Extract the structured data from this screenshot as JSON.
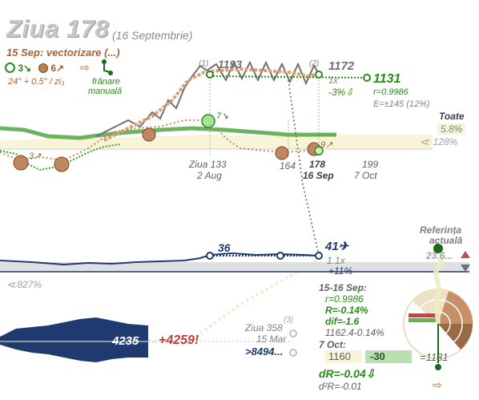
{
  "header": {
    "title": "Ziua 178",
    "date": "(16 Septembrie)",
    "subtitle": "15 Sep: vectorizare (...)",
    "metric_label": "24° + 0.5° / zi₃",
    "braking_label_1": "frânare",
    "braking_label_2": "manuală",
    "legend_green": "3↘",
    "legend_brown": "6↗"
  },
  "top_chart": {
    "peak_label": "1193",
    "peak_marker": "(1)",
    "current_value": "1172",
    "current_marker": "(2)",
    "target_value": "1131",
    "multiplier": "1x",
    "change": "-3%⇩",
    "r_value": "r=0.9986",
    "e_value": "E=±145 (12%)",
    "toate_label": "Toate",
    "toate_pct": "5.8%",
    "toate_ratio": "⊲: 128%",
    "marker_7": "7↘",
    "marker_9": "9↗",
    "marker_3": "3↗",
    "x_ticks": [
      {
        "top": "Ziua 133",
        "bottom": "2 Aug"
      },
      {
        "top": "164",
        "bottom": ""
      },
      {
        "top": "178",
        "bottom": "16 Sep"
      },
      {
        "top": "199",
        "bottom": "7 Oct"
      }
    ]
  },
  "middle_chart": {
    "value_left": "36",
    "value_right": "41✈",
    "multiplier": "1.1x",
    "change": "+11%",
    "ratio": "⊲:827%",
    "reference_label_1": "Referința",
    "reference_label_2": "actuală",
    "reference_value": "23.6..."
  },
  "bottom_chart": {
    "current_value": "4235",
    "delta": "+4259!",
    "day_label": "Ziua 358",
    "day_marker": "(3)",
    "date_label": "15 Mar",
    "future_value": ">8494..."
  },
  "stats_panel": {
    "range_label": "15-16 Sep:",
    "r": "r=0.9986",
    "R": "R=-0.14%",
    "dif": "dif=-1.6",
    "calc": "1162.4-0.14%",
    "oct_label": "7 Oct:",
    "input_value": "1160",
    "adjust_value": "-30",
    "result": "=1131",
    "dR": "dR=-0.04⇩",
    "d2R": "d²R=-0.01"
  },
  "colors": {
    "green": "#2a8a1a",
    "brown": "#a06030",
    "navy": "#1e3a6e",
    "grey": "#808080",
    "red": "#c04040",
    "pale_yellow": "#f8f4d8"
  }
}
